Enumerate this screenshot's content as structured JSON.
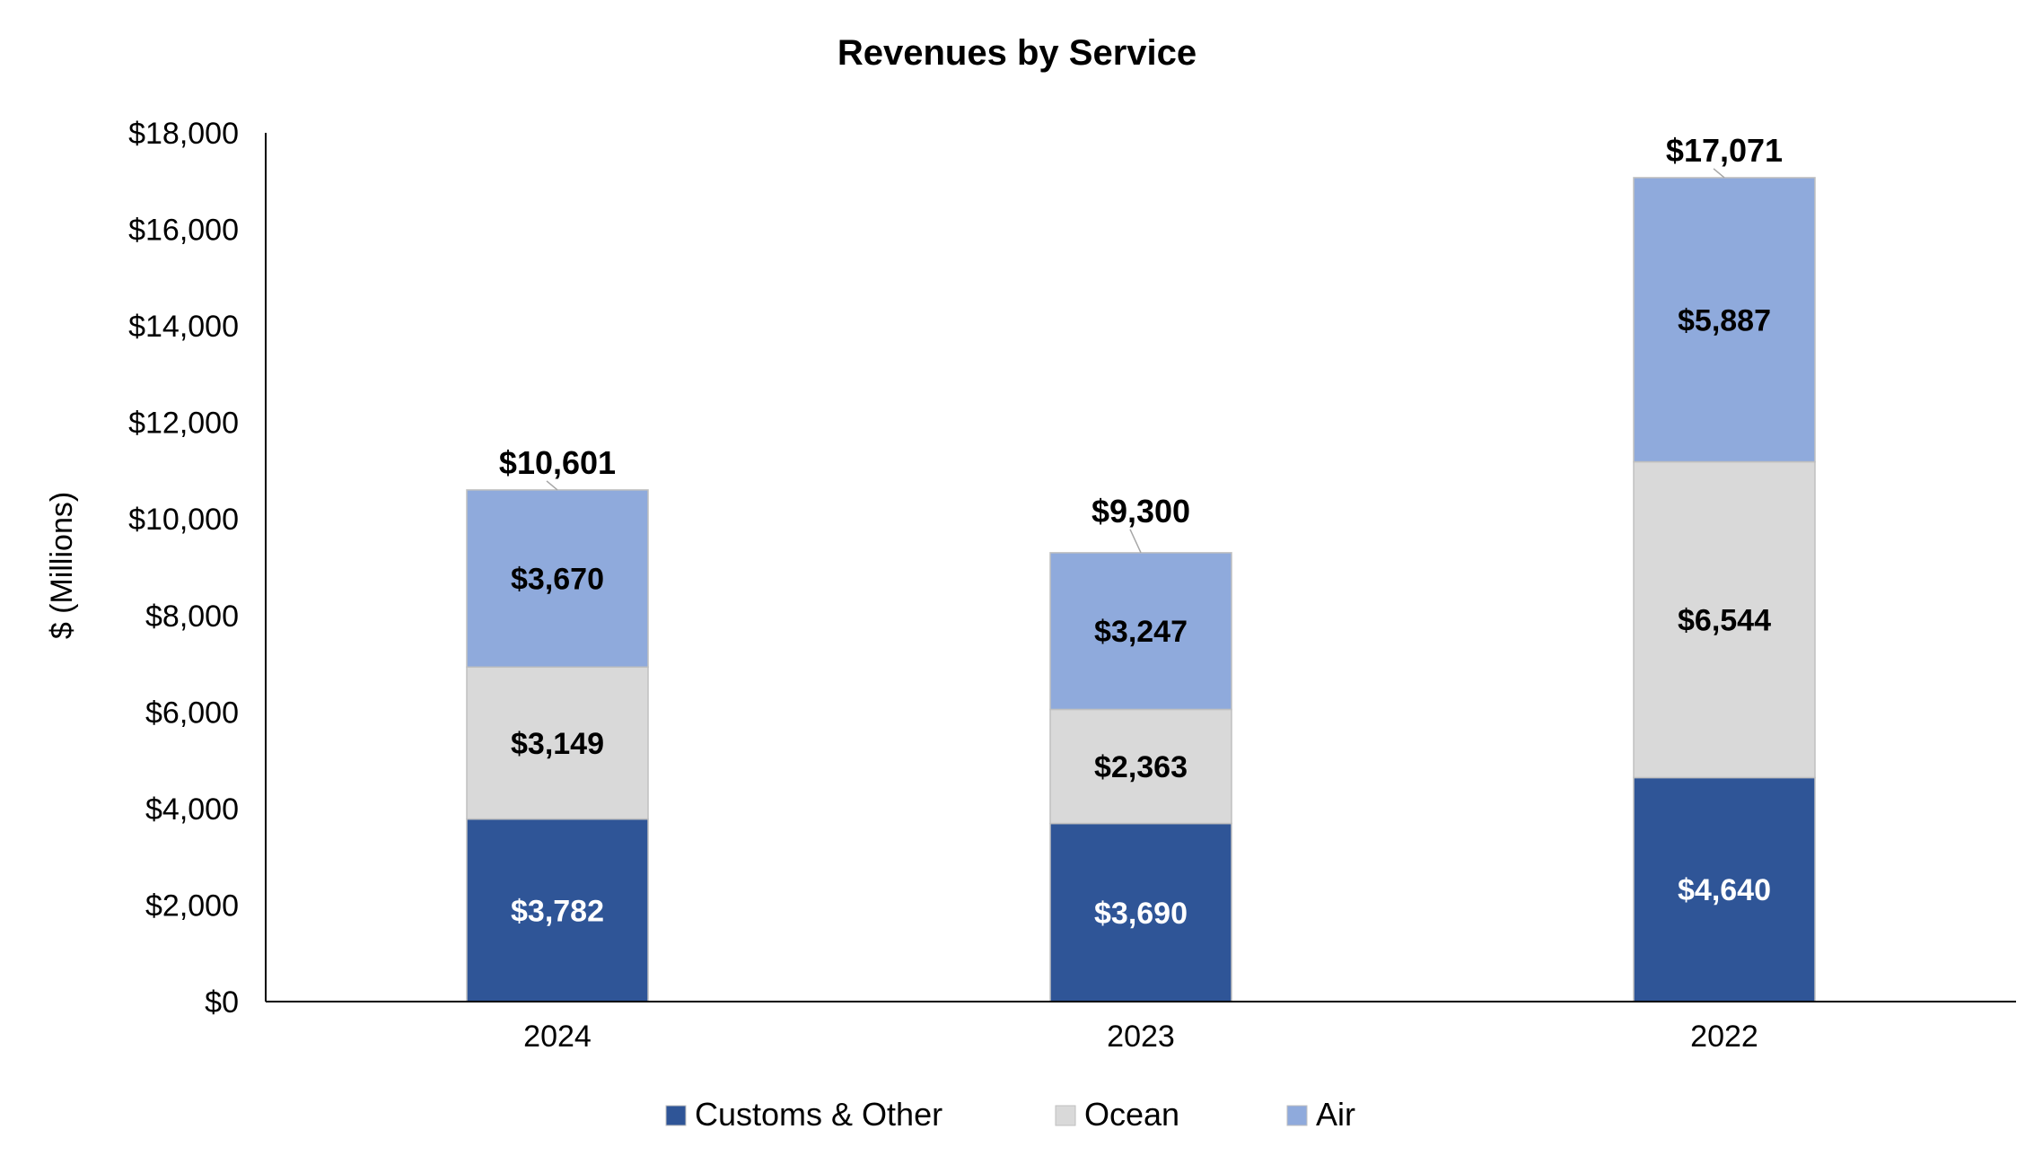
{
  "chart_data": {
    "type": "bar",
    "stacked": true,
    "title": "Revenues by Service",
    "xlabel": "",
    "ylabel": "$ (Millions)",
    "ylim": [
      0,
      18000
    ],
    "ytick_step": 2000,
    "yticks": [
      "$0",
      "$2,000",
      "$4,000",
      "$6,000",
      "$8,000",
      "$10,000",
      "$12,000",
      "$14,000",
      "$16,000",
      "$18,000"
    ],
    "categories": [
      "2024",
      "2023",
      "2022"
    ],
    "series": [
      {
        "name": "Customs & Other",
        "color": "#2F5597",
        "label_color": "#FFFFFF",
        "values": [
          3782,
          3690,
          4640
        ],
        "labels": [
          "$3,782",
          "$3,690",
          "$4,640"
        ]
      },
      {
        "name": "Ocean",
        "color": "#D9D9D9",
        "label_color": "#000000",
        "values": [
          3149,
          2363,
          6544
        ],
        "labels": [
          "$3,149",
          "$2,363",
          "$6,544"
        ]
      },
      {
        "name": "Air",
        "color": "#8FAADC",
        "label_color": "#000000",
        "values": [
          3670,
          3247,
          5887
        ],
        "labels": [
          "$3,670",
          "$3,247",
          "$5,887"
        ]
      }
    ],
    "totals": [
      10601,
      9300,
      17071
    ],
    "total_labels": [
      "$10,601",
      "$9,300",
      "$17,071"
    ],
    "legend_position": "bottom"
  }
}
